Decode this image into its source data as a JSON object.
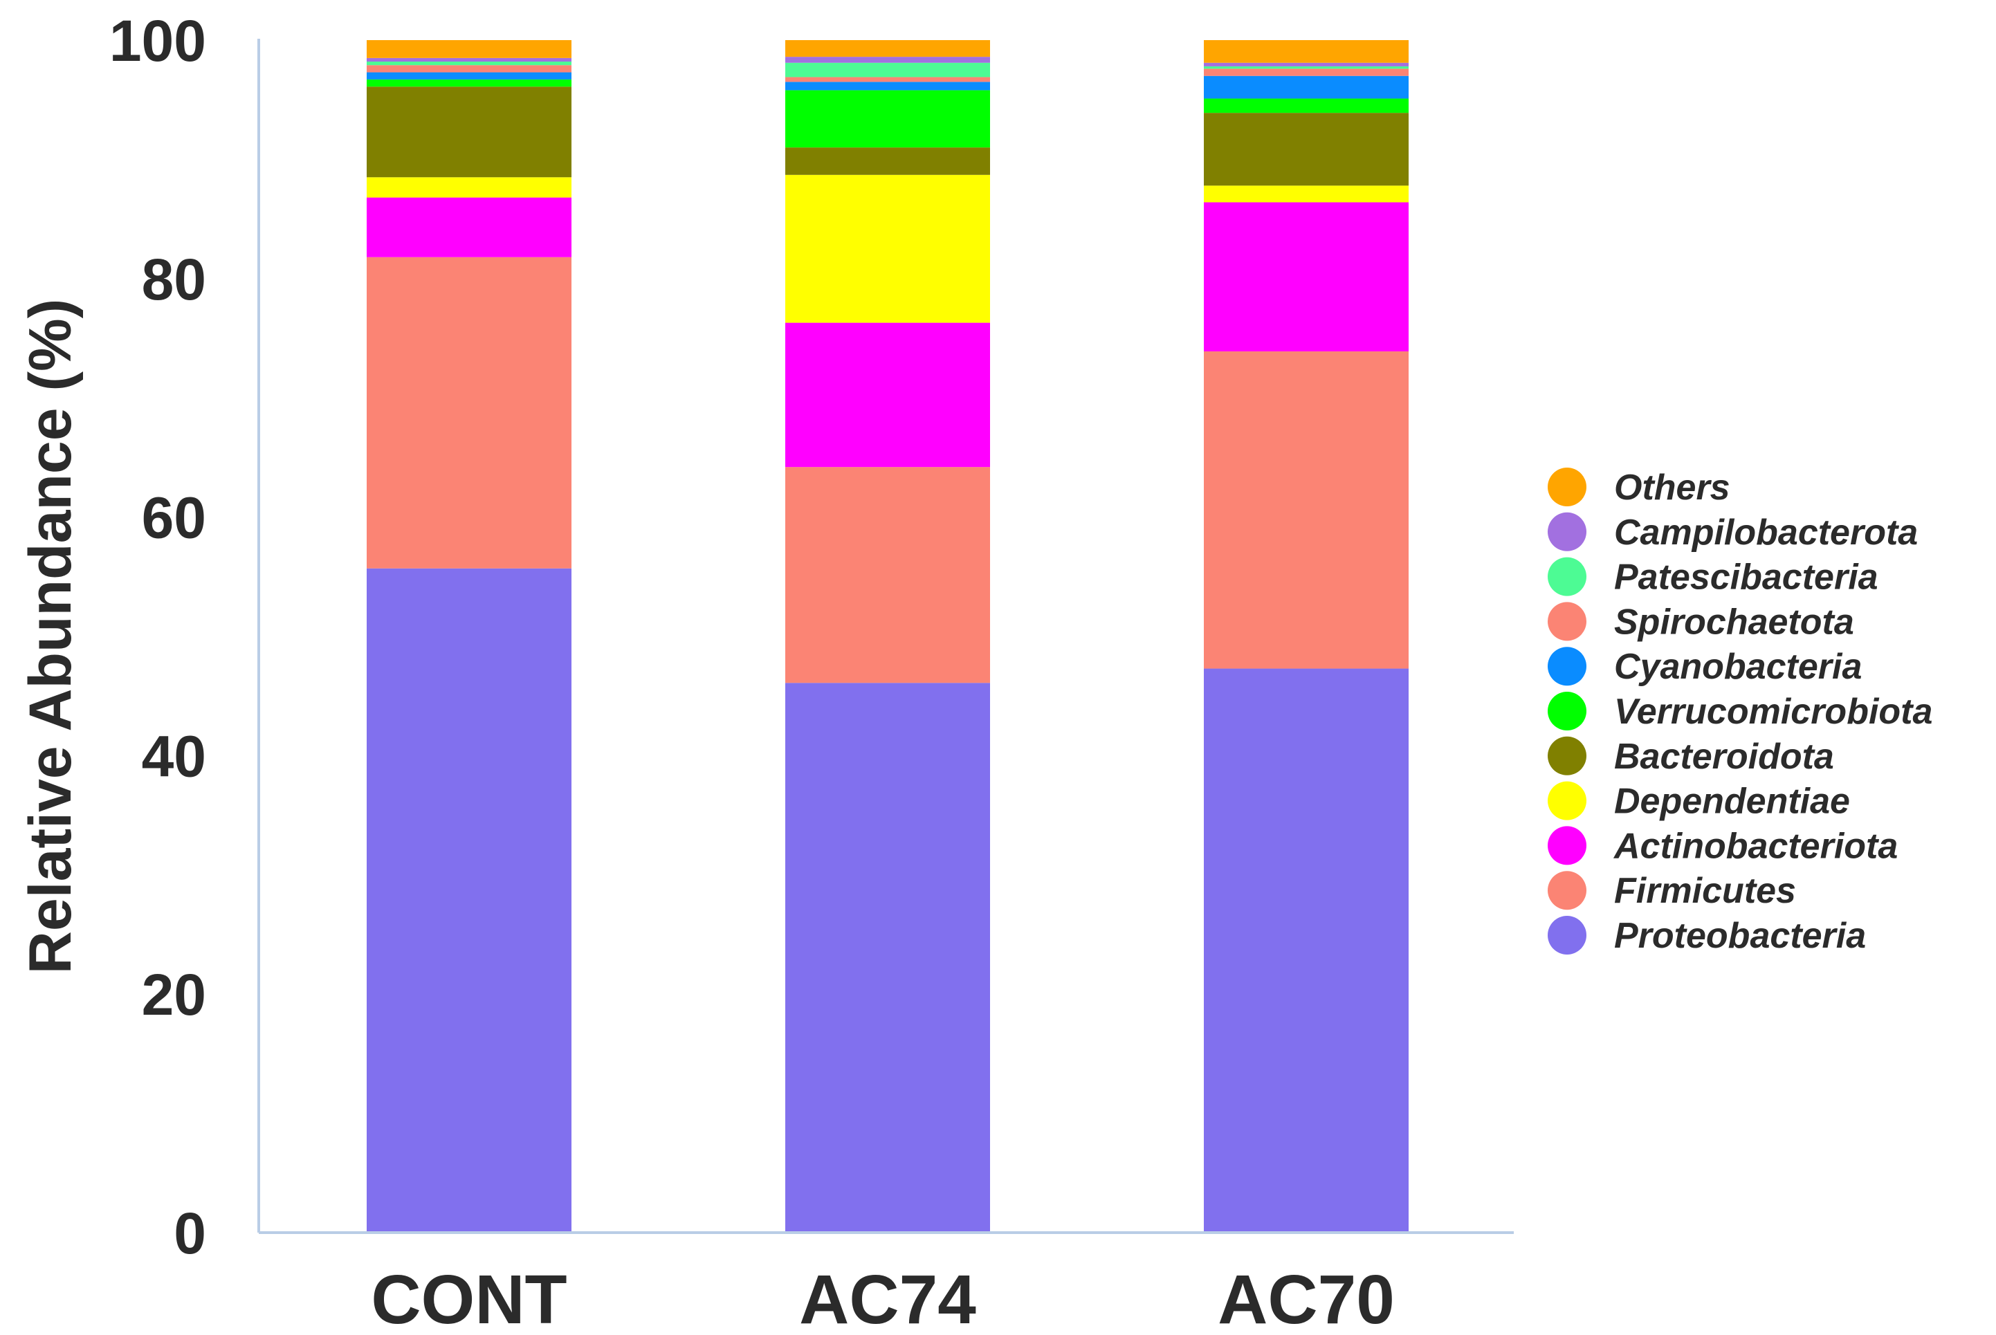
{
  "chart_data": {
    "type": "bar",
    "stacked": true,
    "title": "",
    "xlabel": "",
    "ylabel": "Relative Abundance (%)",
    "ylim": [
      0,
      100
    ],
    "yticks": [
      0,
      20,
      40,
      60,
      80,
      100
    ],
    "grid": false,
    "legend_position": "right",
    "categories": [
      "CONT",
      "AC74",
      "AC70"
    ],
    "series": [
      {
        "name": "Proteobacteria",
        "color": "#8170ee",
        "values": [
          55.7,
          46.1,
          47.3
        ]
      },
      {
        "name": "Firmicutes",
        "color": "#fb8474",
        "values": [
          26.1,
          18.1,
          26.6
        ]
      },
      {
        "name": "Actinobacteriota",
        "color": "#ff00ff",
        "values": [
          5.0,
          12.1,
          12.5
        ]
      },
      {
        "name": "Dependentiae",
        "color": "#ffff00",
        "values": [
          1.7,
          12.4,
          1.4
        ]
      },
      {
        "name": "Bacteroidota",
        "color": "#808000",
        "values": [
          7.6,
          2.3,
          6.1
        ]
      },
      {
        "name": "Verrucomicrobiota",
        "color": "#00ff00",
        "values": [
          0.6,
          4.8,
          1.2
        ]
      },
      {
        "name": "Cyanobacteria",
        "color": "#0a8cff",
        "values": [
          0.6,
          0.7,
          1.9
        ]
      },
      {
        "name": "Spirochaetota",
        "color": "#fb8474",
        "values": [
          0.6,
          0.4,
          0.6
        ]
      },
      {
        "name": "Patescibacteria",
        "color": "#4dfb94",
        "values": [
          0.3,
          1.2,
          0.2
        ]
      },
      {
        "name": "Campilobacterota",
        "color": "#a270e0",
        "values": [
          0.3,
          0.5,
          0.3
        ]
      },
      {
        "name": "Others",
        "color": "#ffa500",
        "values": [
          1.5,
          1.4,
          1.9
        ]
      }
    ],
    "legend_order": [
      "Others",
      "Campilobacterota",
      "Patescibacteria",
      "Spirochaetota",
      "Cyanobacteria",
      "Verrucomicrobiota",
      "Bacteroidota",
      "Dependentiae",
      "Actinobacteriota",
      "Firmicutes",
      "Proteobacteria"
    ],
    "axis_color": "#b9cde6"
  }
}
